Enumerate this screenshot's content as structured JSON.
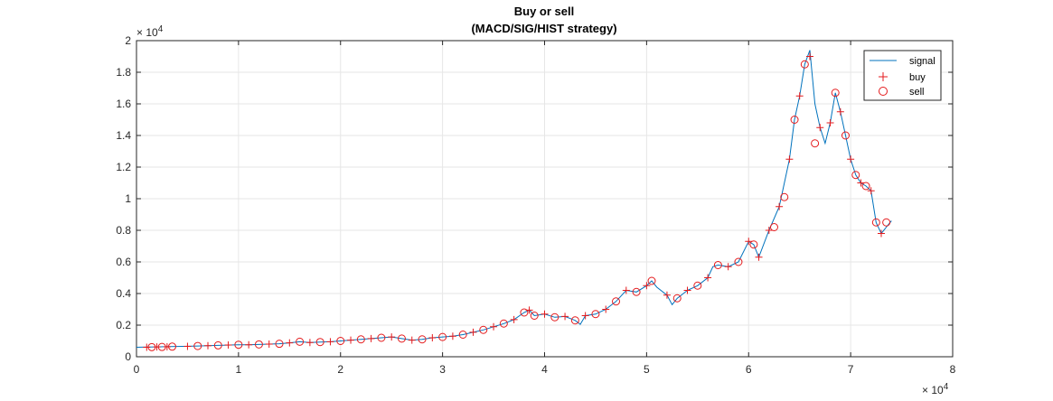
{
  "chart_data": {
    "type": "line",
    "title": "Buy or sell",
    "subtitle": "(MACD/SIG/HIST strategy)",
    "xlabel": "",
    "ylabel": "",
    "x_range": [
      0,
      80000
    ],
    "y_range": [
      0,
      20000
    ],
    "x_ticks": [
      0,
      10000,
      20000,
      30000,
      40000,
      50000,
      60000,
      70000,
      80000
    ],
    "x_tick_labels": [
      "0",
      "1",
      "2",
      "3",
      "4",
      "5",
      "6",
      "7",
      "8"
    ],
    "x_exponent_label": "× 10",
    "x_exponent_power": "4",
    "y_ticks": [
      0,
      2000,
      4000,
      6000,
      8000,
      10000,
      12000,
      14000,
      16000,
      18000,
      20000
    ],
    "y_tick_labels": [
      "0",
      "0.2",
      "0.4",
      "0.6",
      "0.8",
      "1",
      "1.2",
      "1.4",
      "1.6",
      "1.8",
      "2"
    ],
    "y_exponent_label": "× 10",
    "y_exponent_power": "4",
    "grid": true,
    "legend_position": "top-right",
    "series": [
      {
        "name": "signal",
        "kind": "line",
        "color": "#0072BD",
        "points": [
          [
            0,
            600
          ],
          [
            1000,
            610
          ],
          [
            2000,
            620
          ],
          [
            3000,
            640
          ],
          [
            4000,
            650
          ],
          [
            5000,
            660
          ],
          [
            6000,
            680
          ],
          [
            7000,
            700
          ],
          [
            8000,
            720
          ],
          [
            9000,
            740
          ],
          [
            10000,
            760
          ],
          [
            11000,
            760
          ],
          [
            12000,
            780
          ],
          [
            13000,
            800
          ],
          [
            14000,
            820
          ],
          [
            15000,
            880
          ],
          [
            16000,
            950
          ],
          [
            17000,
            900
          ],
          [
            18000,
            930
          ],
          [
            19000,
            950
          ],
          [
            20000,
            1000
          ],
          [
            21000,
            1050
          ],
          [
            22000,
            1100
          ],
          [
            23000,
            1150
          ],
          [
            24000,
            1200
          ],
          [
            25000,
            1250
          ],
          [
            26000,
            1150
          ],
          [
            27000,
            1050
          ],
          [
            28000,
            1100
          ],
          [
            29000,
            1200
          ],
          [
            30000,
            1250
          ],
          [
            31000,
            1300
          ],
          [
            32000,
            1400
          ],
          [
            33000,
            1550
          ],
          [
            34000,
            1700
          ],
          [
            35000,
            1900
          ],
          [
            36000,
            2100
          ],
          [
            37000,
            2350
          ],
          [
            38000,
            2800
          ],
          [
            38500,
            2950
          ],
          [
            39000,
            2600
          ],
          [
            40000,
            2700
          ],
          [
            41000,
            2500
          ],
          [
            42000,
            2550
          ],
          [
            43000,
            2300
          ],
          [
            43500,
            2050
          ],
          [
            44000,
            2600
          ],
          [
            45000,
            2700
          ],
          [
            46000,
            3000
          ],
          [
            47000,
            3500
          ],
          [
            48000,
            4200
          ],
          [
            49000,
            4100
          ],
          [
            50000,
            4500
          ],
          [
            50500,
            4800
          ],
          [
            51000,
            4400
          ],
          [
            52000,
            3900
          ],
          [
            52500,
            3300
          ],
          [
            53000,
            3700
          ],
          [
            54000,
            4200
          ],
          [
            55000,
            4500
          ],
          [
            56000,
            5000
          ],
          [
            56500,
            5700
          ],
          [
            57000,
            5800
          ],
          [
            58000,
            5700
          ],
          [
            59000,
            6000
          ],
          [
            60000,
            7300
          ],
          [
            60500,
            7100
          ],
          [
            61000,
            6300
          ],
          [
            62000,
            8000
          ],
          [
            63000,
            9500
          ],
          [
            63500,
            11000
          ],
          [
            64000,
            12500
          ],
          [
            64500,
            15000
          ],
          [
            65000,
            16500
          ],
          [
            65500,
            18500
          ],
          [
            66000,
            19400
          ],
          [
            66500,
            16000
          ],
          [
            67000,
            14500
          ],
          [
            67500,
            13500
          ],
          [
            68000,
            14800
          ],
          [
            68500,
            16700
          ],
          [
            69000,
            15500
          ],
          [
            69500,
            14000
          ],
          [
            70000,
            12500
          ],
          [
            70500,
            11500
          ],
          [
            71000,
            11000
          ],
          [
            71500,
            10800
          ],
          [
            72000,
            10500
          ],
          [
            72500,
            8500
          ],
          [
            73000,
            7800
          ],
          [
            73500,
            8200
          ],
          [
            74000,
            8600
          ]
        ]
      },
      {
        "name": "buy",
        "kind": "marker",
        "marker": "plus",
        "color": "#E41A1C",
        "points": [
          [
            1000,
            600
          ],
          [
            2000,
            620
          ],
          [
            3000,
            630
          ],
          [
            5000,
            660
          ],
          [
            7000,
            700
          ],
          [
            9000,
            740
          ],
          [
            11000,
            760
          ],
          [
            13000,
            800
          ],
          [
            15000,
            880
          ],
          [
            17000,
            900
          ],
          [
            19000,
            950
          ],
          [
            21000,
            1050
          ],
          [
            23000,
            1150
          ],
          [
            25000,
            1250
          ],
          [
            27000,
            1050
          ],
          [
            29000,
            1200
          ],
          [
            31000,
            1300
          ],
          [
            33000,
            1550
          ],
          [
            35000,
            1900
          ],
          [
            37000,
            2350
          ],
          [
            38500,
            2950
          ],
          [
            40000,
            2700
          ],
          [
            42000,
            2550
          ],
          [
            44000,
            2600
          ],
          [
            46000,
            3000
          ],
          [
            48000,
            4200
          ],
          [
            50000,
            4500
          ],
          [
            52000,
            3900
          ],
          [
            54000,
            4200
          ],
          [
            56000,
            5000
          ],
          [
            58000,
            5700
          ],
          [
            60000,
            7300
          ],
          [
            61000,
            6300
          ],
          [
            62000,
            8000
          ],
          [
            63000,
            9500
          ],
          [
            64000,
            12500
          ],
          [
            65000,
            16500
          ],
          [
            66000,
            19000
          ],
          [
            67000,
            14500
          ],
          [
            68000,
            14800
          ],
          [
            69000,
            15500
          ],
          [
            70000,
            12500
          ],
          [
            71000,
            11000
          ],
          [
            72000,
            10500
          ],
          [
            73000,
            7800
          ]
        ]
      },
      {
        "name": "sell",
        "kind": "marker",
        "marker": "circle",
        "color": "#E41A1C",
        "points": [
          [
            1500,
            610
          ],
          [
            2500,
            620
          ],
          [
            3500,
            640
          ],
          [
            6000,
            680
          ],
          [
            8000,
            720
          ],
          [
            10000,
            760
          ],
          [
            12000,
            780
          ],
          [
            14000,
            820
          ],
          [
            16000,
            950
          ],
          [
            18000,
            930
          ],
          [
            20000,
            1000
          ],
          [
            22000,
            1100
          ],
          [
            24000,
            1200
          ],
          [
            26000,
            1150
          ],
          [
            28000,
            1100
          ],
          [
            30000,
            1250
          ],
          [
            32000,
            1400
          ],
          [
            34000,
            1700
          ],
          [
            36000,
            2100
          ],
          [
            38000,
            2800
          ],
          [
            39000,
            2600
          ],
          [
            41000,
            2500
          ],
          [
            43000,
            2300
          ],
          [
            45000,
            2700
          ],
          [
            47000,
            3500
          ],
          [
            49000,
            4100
          ],
          [
            50500,
            4800
          ],
          [
            53000,
            3700
          ],
          [
            55000,
            4500
          ],
          [
            57000,
            5800
          ],
          [
            59000,
            6000
          ],
          [
            60500,
            7100
          ],
          [
            62500,
            8200
          ],
          [
            63500,
            10100
          ],
          [
            64500,
            15000
          ],
          [
            65500,
            18500
          ],
          [
            66500,
            13500
          ],
          [
            68500,
            16700
          ],
          [
            69500,
            14000
          ],
          [
            70500,
            11500
          ],
          [
            71500,
            10800
          ],
          [
            72500,
            8500
          ],
          [
            73500,
            8500
          ]
        ]
      }
    ]
  }
}
